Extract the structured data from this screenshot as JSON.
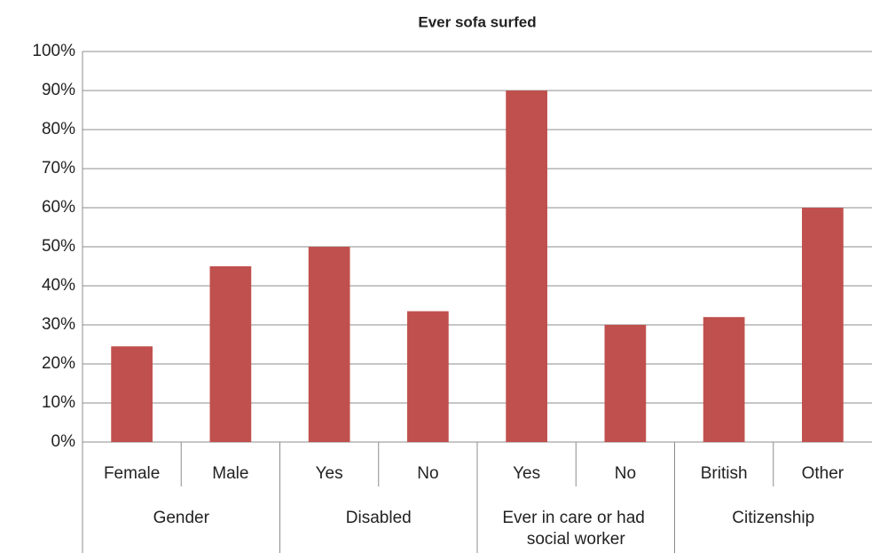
{
  "chart_data": {
    "type": "bar",
    "title": "Ever sofa surfed",
    "groups": [
      {
        "name": "Gender",
        "categories": [
          "Female",
          "Male"
        ],
        "values": [
          24.5,
          45
        ]
      },
      {
        "name": "Disabled",
        "categories": [
          "Yes",
          "No"
        ],
        "values": [
          50,
          33.5
        ]
      },
      {
        "name": "Ever in care or had social worker",
        "categories": [
          "Yes",
          "No"
        ],
        "values": [
          90,
          30
        ]
      },
      {
        "name": "Citizenship",
        "categories": [
          "British",
          "Other"
        ],
        "values": [
          32,
          60
        ]
      }
    ],
    "color": "#c0504d",
    "ylim": [
      0,
      100
    ],
    "yticks": [
      {
        "value": 0,
        "label": "0%"
      },
      {
        "value": 10,
        "label": "10%"
      },
      {
        "value": 20,
        "label": "20%"
      },
      {
        "value": 30,
        "label": "30%"
      },
      {
        "value": 40,
        "label": "40%"
      },
      {
        "value": 50,
        "label": "50%"
      },
      {
        "value": 60,
        "label": "60%"
      },
      {
        "value": 70,
        "label": "70%"
      },
      {
        "value": 80,
        "label": "80%"
      },
      {
        "value": 90,
        "label": "90%"
      },
      {
        "value": 100,
        "label": "100%"
      }
    ],
    "grid": true
  }
}
